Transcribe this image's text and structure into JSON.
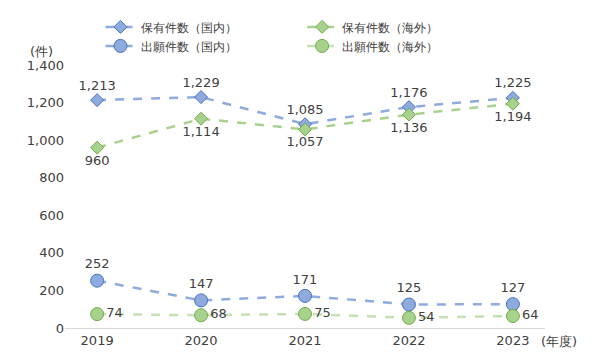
{
  "chart_data": {
    "type": "line",
    "y_label": "(件)",
    "x_label": "(年度)",
    "categories": [
      "2019",
      "2020",
      "2021",
      "2022",
      "2023"
    ],
    "series": [
      {
        "name": "保有件数（国内）",
        "color": "#8faadc",
        "marker": "diamond",
        "line_style": "dash",
        "values": [
          1213,
          1229,
          1085,
          1176,
          1225
        ],
        "value_labels": [
          "1,213",
          "1,229",
          "1,085",
          "1,176",
          "1,225"
        ]
      },
      {
        "name": "保有件数（海外）",
        "color": "#a9d18e",
        "marker": "diamond",
        "line_style": "dash",
        "values": [
          960,
          1114,
          1057,
          1136,
          1194
        ],
        "value_labels": [
          "960",
          "1,114",
          "1,057",
          "1,136",
          "1,194"
        ]
      },
      {
        "name": "出願件数（国内）",
        "color": "#8faadc",
        "marker": "circle",
        "line_style": "dash",
        "values": [
          252,
          147,
          171,
          125,
          127
        ]
      },
      {
        "name": "出願件数（海外）",
        "color": "#c5e0b4",
        "marker": "circle",
        "line_style": "dash",
        "values": [
          74,
          68,
          75,
          54,
          64
        ]
      }
    ],
    "ylim": [
      0,
      1400
    ],
    "yticks": [
      0,
      200,
      400,
      600,
      800,
      {
        "value": 1000,
        "label": "1,000"
      },
      {
        "value": 1200,
        "label": "1,200"
      },
      {
        "value": 1400,
        "label": "1,400"
      }
    ],
    "grid": false,
    "legend": "top",
    "data_labels": true
  }
}
